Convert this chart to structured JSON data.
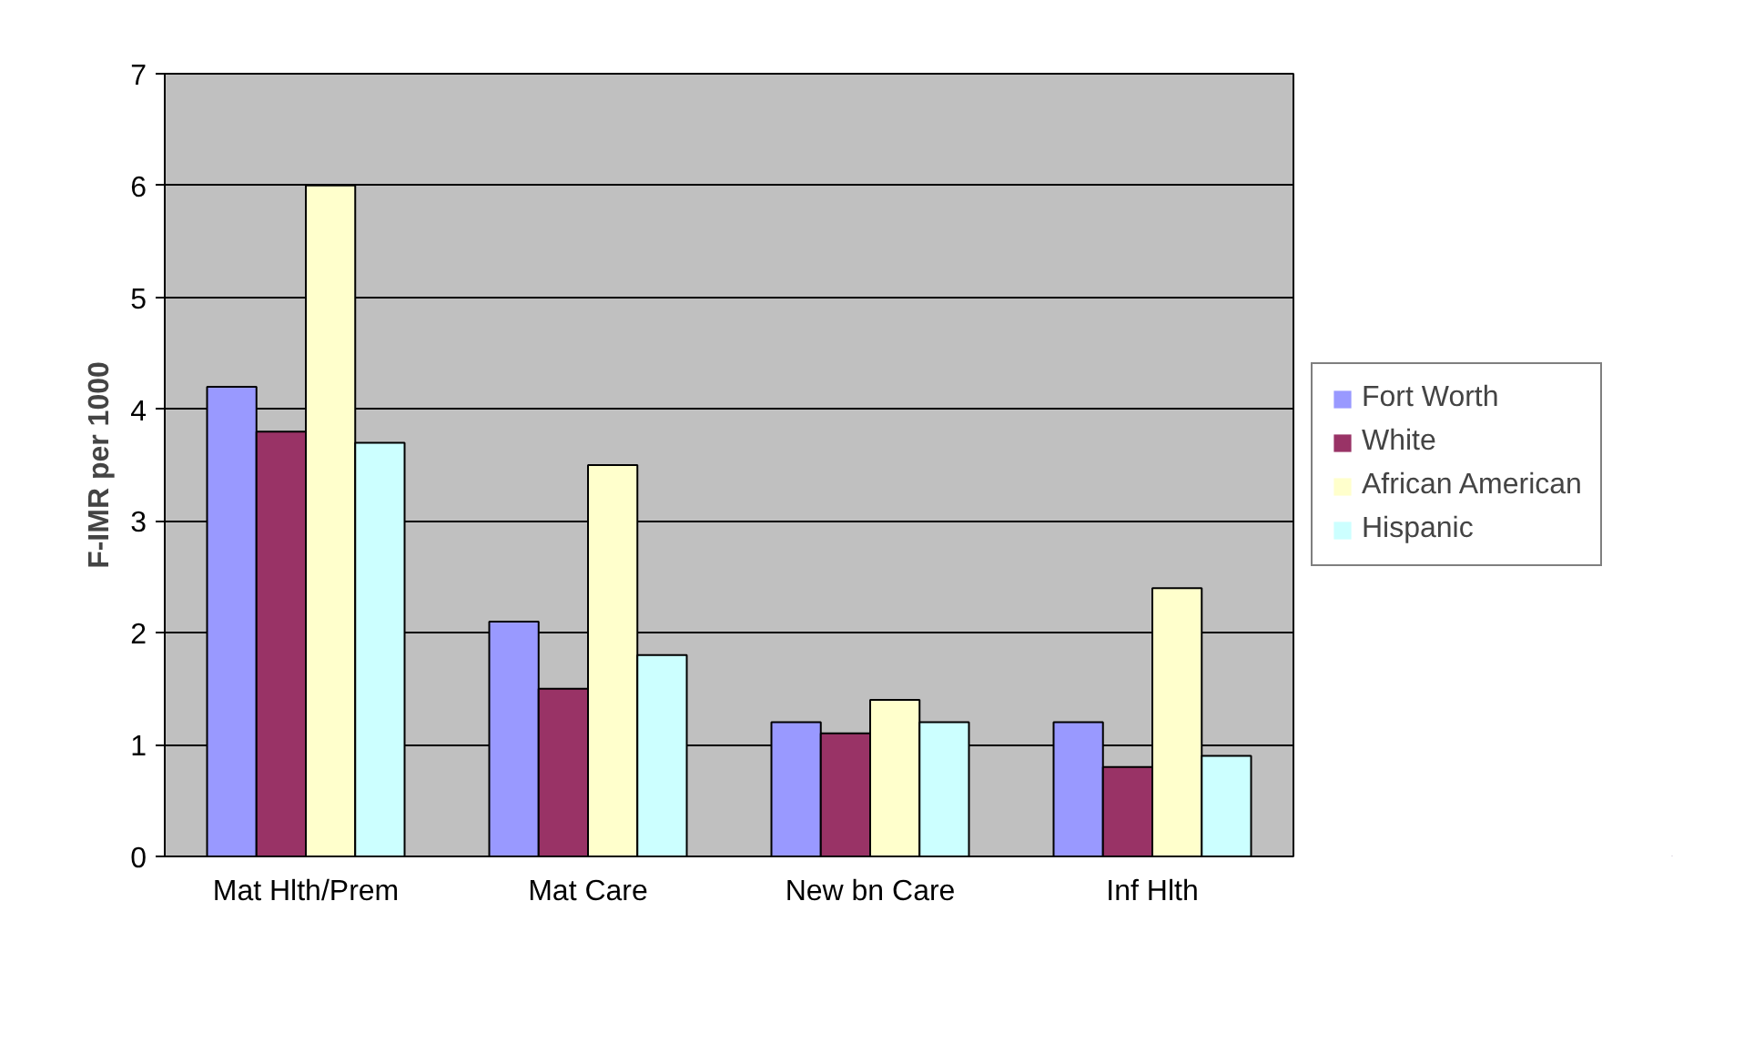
{
  "chart_data": {
    "type": "bar",
    "ylabel": "F-IMR per 1000",
    "categories": [
      "Mat Hlth/Prem",
      "Mat Care",
      "New bn Care",
      "Inf Hlth"
    ],
    "series": [
      {
        "name": "Fort Worth",
        "color": "#9999ff",
        "values": [
          4.2,
          2.1,
          1.2,
          1.2
        ]
      },
      {
        "name": "White",
        "color": "#993366",
        "values": [
          3.8,
          1.5,
          1.1,
          0.8
        ]
      },
      {
        "name": "African American",
        "color": "#ffffcc",
        "values": [
          6.0,
          3.5,
          1.4,
          2.4
        ]
      },
      {
        "name": "Hispanic",
        "color": "#ccffff",
        "values": [
          3.7,
          1.8,
          1.2,
          0.9
        ]
      }
    ],
    "ylim": [
      0,
      7
    ],
    "yticks": [
      0,
      1,
      2,
      3,
      4,
      5,
      6,
      7
    ],
    "grid": "y",
    "legend": "right"
  }
}
